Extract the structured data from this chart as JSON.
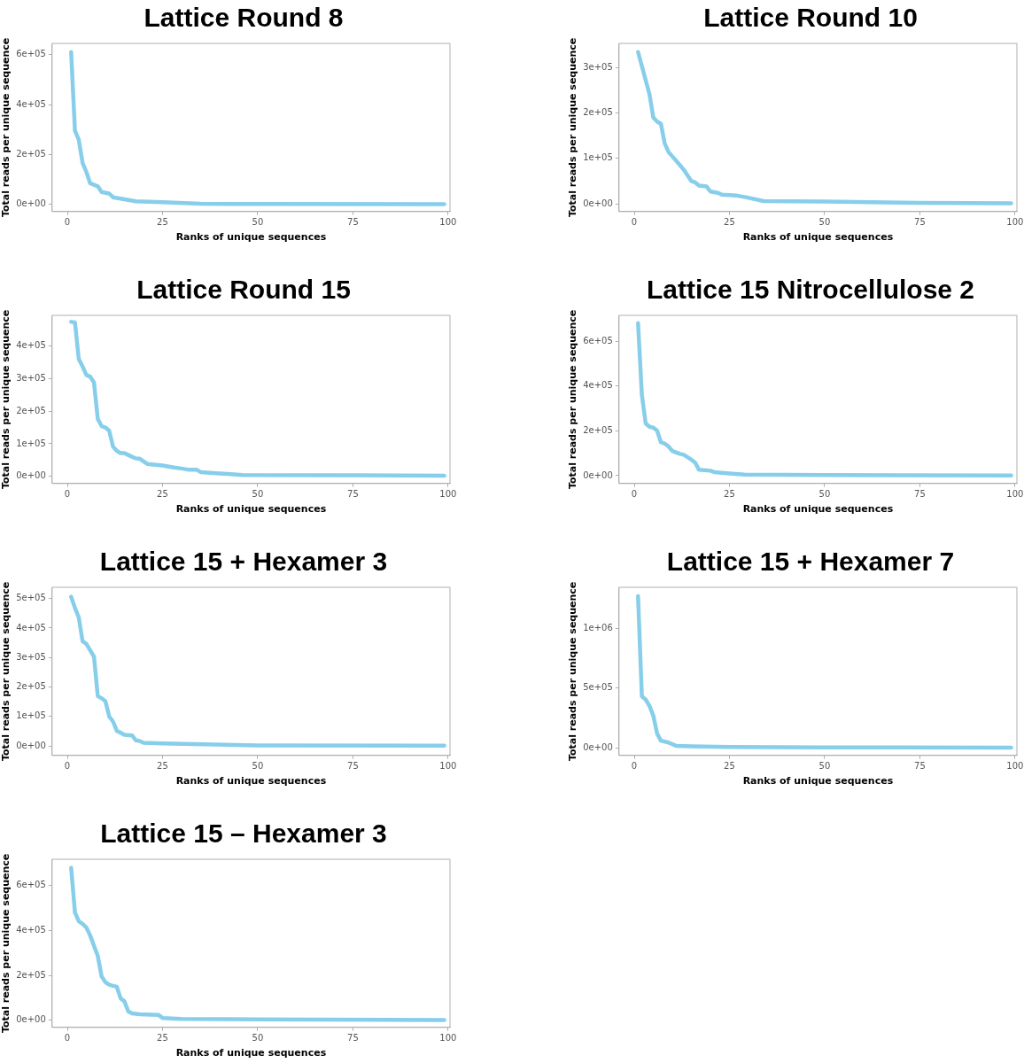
{
  "chart_data": [
    {
      "type": "line",
      "title": "Lattice Round 8",
      "xlabel": "Ranks of unique sequences",
      "ylabel": "Total reads per unique sequence",
      "color": "#87ceeb",
      "xlim": [
        -4,
        100.5
      ],
      "xticks": [
        0,
        25,
        50,
        75,
        100
      ],
      "ylim": [
        -28000,
        645000
      ],
      "yticks": [
        {
          "value": 0,
          "label": "0e+00"
        },
        {
          "value": 200000,
          "label": "2e+05"
        },
        {
          "value": 400000,
          "label": "4e+05"
        },
        {
          "value": 600000,
          "label": "6e+05"
        }
      ],
      "x": [
        1,
        2,
        3,
        4,
        5,
        6,
        8,
        9,
        11,
        12,
        15,
        18,
        25,
        35,
        50,
        99
      ],
      "values": [
        610000,
        295000,
        260000,
        167000,
        130000,
        85000,
        73000,
        50000,
        44000,
        29000,
        21000,
        13000,
        9000,
        3000,
        2000,
        1000
      ]
    },
    {
      "type": "line",
      "title": "Lattice Round 10",
      "xlabel": "Ranks of unique sequences",
      "ylabel": "Total reads per unique sequence",
      "color": "#87ceeb",
      "xlim": [
        -4,
        100.5
      ],
      "xticks": [
        0,
        25,
        50,
        75,
        100
      ],
      "ylim": [
        -17000,
        353000
      ],
      "yticks": [
        {
          "value": 0,
          "label": "0e+00"
        },
        {
          "value": 100000,
          "label": "1e+05"
        },
        {
          "value": 200000,
          "label": "2e+05"
        },
        {
          "value": 300000,
          "label": "3e+05"
        }
      ],
      "x": [
        1,
        4,
        5,
        6,
        7,
        8,
        9,
        12,
        13,
        15,
        16,
        17,
        19,
        20,
        22,
        23,
        27,
        29,
        34,
        50,
        75,
        99
      ],
      "values": [
        334000,
        241000,
        190000,
        181000,
        176000,
        133000,
        114000,
        85000,
        75000,
        50000,
        47000,
        40000,
        38000,
        27000,
        24000,
        20000,
        18000,
        15000,
        6000,
        5000,
        2000,
        1000
      ]
    },
    {
      "type": "line",
      "title": "Lattice Round 15",
      "xlabel": "Ranks of unique sequences",
      "ylabel": "Total reads per unique sequence",
      "color": "#87ceeb",
      "xlim": [
        -4,
        100.5
      ],
      "xticks": [
        0,
        25,
        50,
        75,
        100
      ],
      "ylim": [
        -22000,
        494000
      ],
      "yticks": [
        {
          "value": 0,
          "label": "0e+00"
        },
        {
          "value": 100000,
          "label": "1e+05"
        },
        {
          "value": 200000,
          "label": "2e+05"
        },
        {
          "value": 300000,
          "label": "3e+05"
        },
        {
          "value": 400000,
          "label": "4e+05"
        }
      ],
      "x": [
        1,
        2,
        3,
        4,
        5,
        6,
        7,
        8,
        9,
        10,
        11,
        12,
        13,
        14,
        15,
        17,
        18,
        19,
        21,
        25,
        28,
        30,
        32,
        34,
        35,
        40,
        46,
        75,
        99
      ],
      "values": [
        474000,
        472000,
        360000,
        337000,
        311000,
        306000,
        288000,
        176000,
        154000,
        150000,
        140000,
        91000,
        78000,
        71000,
        71000,
        60000,
        55000,
        54000,
        38000,
        33000,
        27000,
        24000,
        20000,
        20000,
        13000,
        9000,
        4000,
        3000,
        2000
      ]
    },
    {
      "type": "line",
      "title": "Lattice 15 Nitrocellulose 2",
      "xlabel": "Ranks of unique sequences",
      "ylabel": "Total reads per unique sequence",
      "color": "#87ceeb",
      "xlim": [
        -4,
        100.5
      ],
      "xticks": [
        0,
        25,
        50,
        75,
        100
      ],
      "ylim": [
        -35000,
        715000
      ],
      "yticks": [
        {
          "value": 0,
          "label": "0e+00"
        },
        {
          "value": 200000,
          "label": "2e+05"
        },
        {
          "value": 400000,
          "label": "4e+05"
        },
        {
          "value": 600000,
          "label": "6e+05"
        }
      ],
      "x": [
        1,
        2,
        3,
        4,
        5,
        6,
        7,
        8,
        9,
        10,
        12,
        13,
        15,
        16,
        17,
        20,
        21,
        25,
        29,
        50,
        99
      ],
      "values": [
        680000,
        360000,
        233000,
        218000,
        214000,
        201000,
        149000,
        143000,
        130000,
        110000,
        97000,
        93000,
        71000,
        58000,
        26000,
        22000,
        16000,
        10000,
        5000,
        3000,
        1000
      ]
    },
    {
      "type": "line",
      "title": "Lattice 15 + Hexamer 3",
      "xlabel": "Ranks of unique sequences",
      "ylabel": "Total reads per unique sequence",
      "color": "#87ceeb",
      "xlim": [
        -4,
        100.5
      ],
      "xticks": [
        0,
        25,
        50,
        75,
        100
      ],
      "ylim": [
        -32000,
        538000
      ],
      "yticks": [
        {
          "value": 0,
          "label": "0e+00"
        },
        {
          "value": 100000,
          "label": "1e+05"
        },
        {
          "value": 200000,
          "label": "2e+05"
        },
        {
          "value": 300000,
          "label": "3e+05"
        },
        {
          "value": 400000,
          "label": "4e+05"
        },
        {
          "value": 500000,
          "label": "5e+05"
        }
      ],
      "x": [
        1,
        2,
        3,
        4,
        5,
        7,
        8,
        9,
        10,
        11,
        12,
        13,
        14,
        15,
        17,
        18,
        19,
        20,
        25,
        50,
        99
      ],
      "values": [
        506000,
        468000,
        436000,
        355000,
        346000,
        303000,
        169000,
        162000,
        152000,
        100000,
        83000,
        51000,
        45000,
        38000,
        36000,
        19000,
        17000,
        11000,
        9000,
        2000,
        1000
      ]
    },
    {
      "type": "line",
      "title": "Lattice 15 + Hexamer 7",
      "xlabel": "Ranks of unique sequences",
      "ylabel": "Total reads per unique sequence",
      "color": "#87ceeb",
      "xlim": [
        -4,
        100.5
      ],
      "xticks": [
        0,
        25,
        50,
        75,
        100
      ],
      "ylim": [
        -65000,
        1344000
      ],
      "yticks": [
        {
          "value": 0,
          "label": "0e+00"
        },
        {
          "value": 500000,
          "label": "5e+05"
        },
        {
          "value": 1000000,
          "label": "1e+06"
        }
      ],
      "x": [
        1,
        2,
        3,
        4,
        5,
        6,
        7,
        9,
        11,
        15,
        25,
        50,
        99
      ],
      "values": [
        1269000,
        430000,
        403000,
        350000,
        269000,
        118000,
        59000,
        43000,
        16000,
        11000,
        5000,
        2000,
        1000
      ]
    },
    {
      "type": "line",
      "title": "Lattice 15 – Hexamer 3",
      "xlabel": "Ranks of unique sequences",
      "ylabel": "Total reads per unique sequence",
      "color": "#87ceeb",
      "xlim": [
        -4,
        100.5
      ],
      "xticks": [
        0,
        25,
        50,
        75,
        100
      ],
      "ylim": [
        -32000,
        717000
      ],
      "yticks": [
        {
          "value": 0,
          "label": "0e+00"
        },
        {
          "value": 200000,
          "label": "2e+05"
        },
        {
          "value": 400000,
          "label": "4e+05"
        },
        {
          "value": 600000,
          "label": "6e+05"
        }
      ],
      "x": [
        1,
        2,
        3,
        4,
        5,
        6,
        8,
        9,
        10,
        11,
        12,
        13,
        14,
        15,
        16,
        17,
        19,
        24,
        25,
        30,
        50,
        99
      ],
      "values": [
        679000,
        480000,
        441000,
        429000,
        413000,
        377000,
        286000,
        195000,
        169000,
        158000,
        153000,
        149000,
        97000,
        84000,
        39000,
        30000,
        26000,
        23000,
        10000,
        6000,
        4000,
        1000
      ]
    }
  ]
}
